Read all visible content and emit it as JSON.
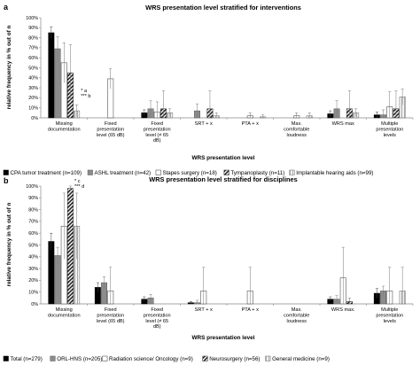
{
  "chart_data": [
    {
      "type": "bar",
      "panel": "a",
      "title": "WRS presentation level stratified for interventions",
      "xlabel": "WRS presentation level",
      "ylabel": "relative frequency in % out of n",
      "ylim": [
        0,
        100
      ],
      "yticks": [
        "0%",
        "10%",
        "20%",
        "30%",
        "40%",
        "50%",
        "60%",
        "70%",
        "80%",
        "90%",
        "100%"
      ],
      "grid": false,
      "legend_position": "bottom",
      "categories": [
        "Missing documentation",
        "Fixed presentation level (65 dB)",
        "Fixed presentation level (≠ 65 dB)",
        "SRT + x",
        "PTA + x",
        "Max. comfortable loudness",
        "WRS max",
        "Multiple presentation levels"
      ],
      "series": [
        {
          "name": "CPA tumor treatment (n=109)",
          "style": "black",
          "values": [
            85,
            0,
            5,
            0,
            0,
            0,
            4,
            3
          ],
          "errors": [
            6,
            0,
            3,
            0,
            0,
            0,
            3,
            3
          ]
        },
        {
          "name": "ASHL treatment (n=42)",
          "style": "gray",
          "values": [
            69,
            0,
            9,
            7,
            0,
            0,
            9,
            3
          ],
          "errors": [
            12,
            0,
            8,
            7,
            0,
            0,
            8,
            5
          ]
        },
        {
          "name": "Stapes surgery (n=18)",
          "style": "white",
          "values": [
            55,
            39,
            6,
            0,
            2,
            2,
            0,
            11
          ],
          "errors": [
            20,
            10,
            10,
            0,
            3,
            3,
            0,
            15
          ]
        },
        {
          "name": "Tympanoplasty (n=11)",
          "style": "hatch",
          "values": [
            45,
            0,
            9,
            9,
            0,
            0,
            9,
            9
          ],
          "errors": [
            28,
            0,
            18,
            18,
            0,
            0,
            18,
            18
          ]
        },
        {
          "name": "Implantable hearing aids (n=99)",
          "style": "light",
          "values": [
            7,
            0,
            5,
            2,
            1,
            2,
            5,
            21
          ],
          "errors": [
            6,
            0,
            4,
            3,
            2,
            3,
            4,
            8
          ]
        }
      ],
      "annotations": [
        {
          "text": "* a",
          "category": "Missing documentation"
        },
        {
          "text": "*** b",
          "category": "Missing documentation"
        }
      ]
    },
    {
      "type": "bar",
      "panel": "b",
      "title": "WRS presentation level stratified for disciplines",
      "xlabel": "WRS presentation level",
      "ylabel": "relative frequency in % out of n",
      "ylim": [
        0,
        100
      ],
      "yticks": [
        "0%",
        "10%",
        "20%",
        "30%",
        "40%",
        "50%",
        "60%",
        "70%",
        "80%",
        "90%",
        "100%"
      ],
      "grid": false,
      "legend_position": "bottom",
      "categories": [
        "Missing documentation",
        "Fixed presentation level (65 dB)",
        "Fixed presentation level (≠ 65 dB)",
        "SRT + x",
        "PTA + x",
        "Max. comfortable loudness",
        "WRS max.",
        "Multiple presentation levels"
      ],
      "series": [
        {
          "name": "Total (n=279)",
          "style": "black",
          "values": [
            53,
            14,
            4,
            1,
            0,
            0,
            4,
            9
          ],
          "errors": [
            7,
            4,
            2,
            1,
            0,
            0,
            2,
            4
          ]
        },
        {
          "name": "ORL-HNS (n=205)",
          "style": "gray",
          "values": [
            41,
            18,
            5,
            1,
            0,
            0,
            4,
            11
          ],
          "errors": [
            7,
            5,
            3,
            2,
            0,
            0,
            3,
            4
          ]
        },
        {
          "name": "Radiation science/ Oncology (n=9)",
          "style": "white",
          "values": [
            66,
            11,
            0,
            11,
            11,
            0,
            22,
            11
          ],
          "errors": [
            28,
            20,
            0,
            20,
            20,
            0,
            26,
            20
          ]
        },
        {
          "name": "Neurosurgery (n=56)",
          "style": "hatch",
          "values": [
            98,
            0,
            0,
            0,
            0,
            0,
            2,
            0
          ],
          "errors": [
            2,
            0,
            0,
            0,
            0,
            0,
            3,
            0
          ]
        },
        {
          "name": "General medicine (n=9)",
          "style": "light",
          "values": [
            66,
            0,
            0,
            0,
            0,
            0,
            0,
            11
          ],
          "errors": [
            28,
            0,
            0,
            0,
            0,
            0,
            0,
            20
          ]
        }
      ],
      "annotations": [
        {
          "text": "* c",
          "category": "Missing documentation"
        },
        {
          "text": "*** d",
          "category": "Missing documentation"
        }
      ]
    }
  ]
}
